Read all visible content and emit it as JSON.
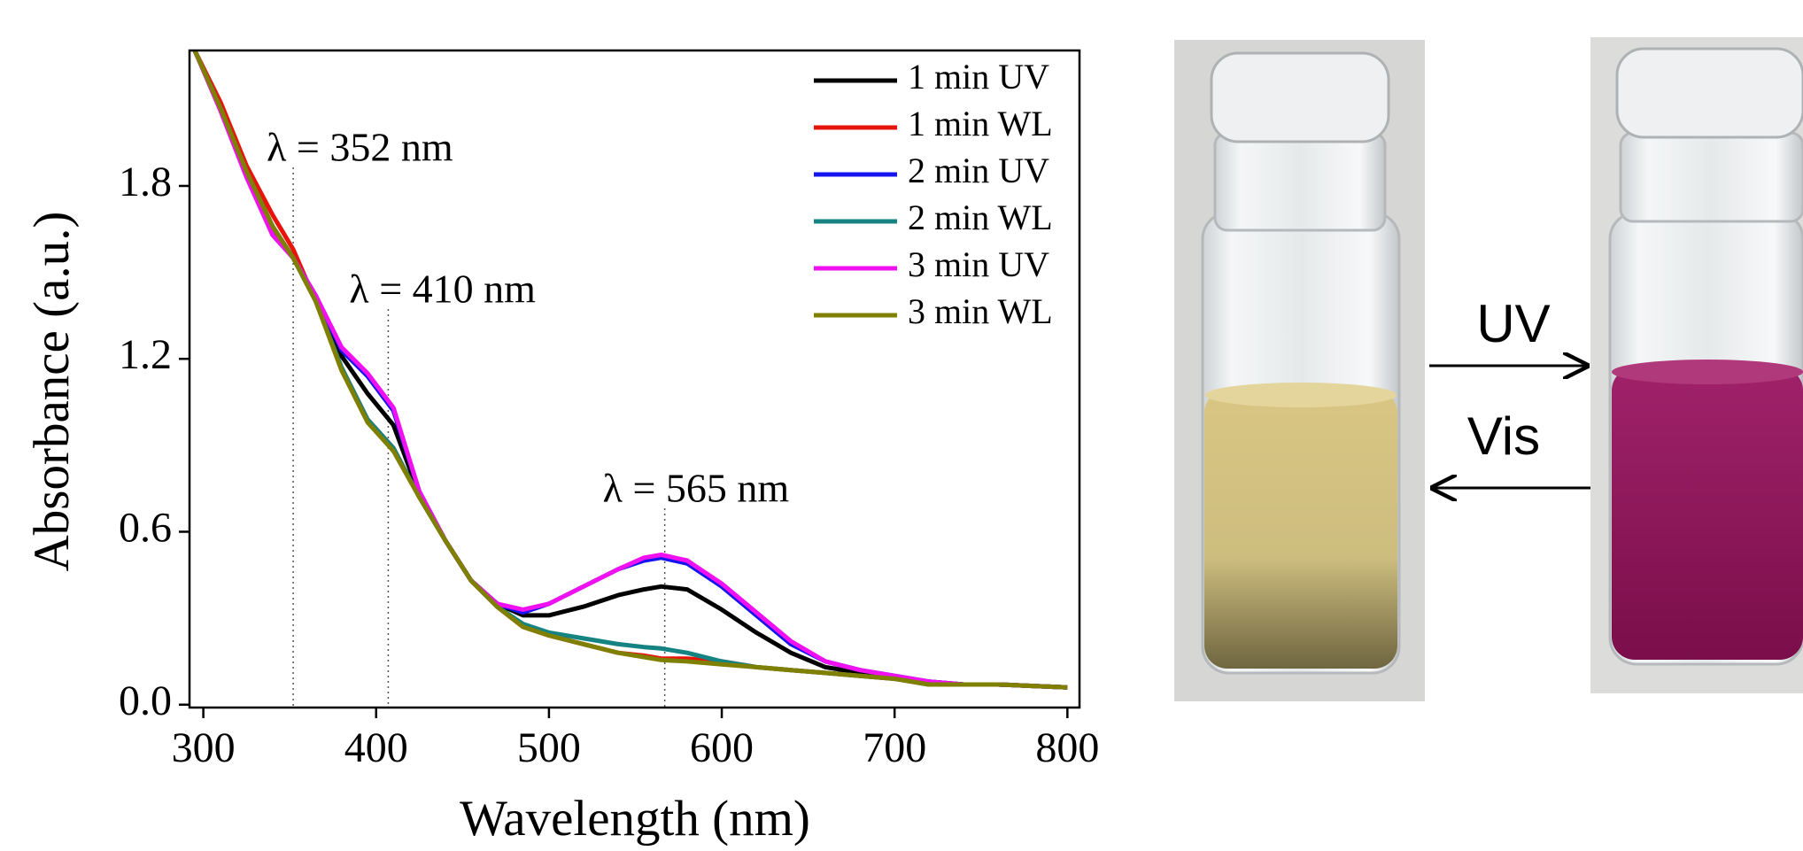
{
  "chart_data": {
    "type": "line",
    "x_label": "Wavelength (nm)",
    "y_label": "Absorbance (a.u.)",
    "xlim": [
      292,
      807
    ],
    "ylim": [
      -0.01,
      2.27
    ],
    "xticks": [
      300,
      400,
      500,
      600,
      700,
      800
    ],
    "yticks": [
      {
        "value": 0,
        "label": "0.0"
      },
      0.6,
      1.2,
      1.8
    ],
    "legend": "upper right",
    "x": [
      295,
      310,
      325,
      340,
      352,
      365,
      380,
      395,
      410,
      425,
      440,
      455,
      470,
      485,
      500,
      520,
      540,
      555,
      565,
      580,
      600,
      620,
      640,
      660,
      680,
      700,
      720,
      740,
      760,
      780,
      800
    ],
    "series": [
      {
        "name": "1 min UV",
        "color": "#000000",
        "values": [
          2.27,
          2.07,
          1.85,
          1.66,
          1.55,
          1.41,
          1.21,
          1.08,
          0.97,
          0.73,
          0.57,
          0.43,
          0.35,
          0.31,
          0.31,
          0.34,
          0.38,
          0.4,
          0.41,
          0.4,
          0.33,
          0.25,
          0.18,
          0.13,
          0.11,
          0.09,
          0.08,
          0.07,
          0.07,
          0.065,
          0.06
        ]
      },
      {
        "name": "1 min WL",
        "color": "#e8140c",
        "values": [
          2.27,
          2.09,
          1.87,
          1.7,
          1.58,
          1.4,
          1.17,
          0.99,
          0.89,
          0.72,
          0.57,
          0.43,
          0.34,
          0.27,
          0.24,
          0.21,
          0.18,
          0.17,
          0.16,
          0.16,
          0.15,
          0.13,
          0.12,
          0.11,
          0.1,
          0.09,
          0.07,
          0.07,
          0.07,
          0.065,
          0.06
        ]
      },
      {
        "name": "2 min UV",
        "color": "#1414f0",
        "values": [
          2.27,
          2.07,
          1.84,
          1.64,
          1.55,
          1.42,
          1.23,
          1.14,
          1.02,
          0.74,
          0.57,
          0.43,
          0.35,
          0.32,
          0.35,
          0.41,
          0.47,
          0.5,
          0.51,
          0.49,
          0.41,
          0.31,
          0.21,
          0.15,
          0.12,
          0.1,
          0.08,
          0.07,
          0.07,
          0.065,
          0.06
        ]
      },
      {
        "name": "2 min WL",
        "color": "#168383",
        "values": [
          2.27,
          2.07,
          1.85,
          1.66,
          1.55,
          1.4,
          1.17,
          0.99,
          0.89,
          0.72,
          0.57,
          0.43,
          0.34,
          0.28,
          0.25,
          0.23,
          0.21,
          0.2,
          0.195,
          0.18,
          0.15,
          0.13,
          0.12,
          0.11,
          0.1,
          0.09,
          0.07,
          0.07,
          0.07,
          0.065,
          0.06
        ]
      },
      {
        "name": "3 min UV",
        "color": "#f010f0",
        "values": [
          2.27,
          2.06,
          1.83,
          1.63,
          1.55,
          1.42,
          1.24,
          1.15,
          1.03,
          0.74,
          0.57,
          0.43,
          0.35,
          0.33,
          0.35,
          0.41,
          0.47,
          0.51,
          0.52,
          0.5,
          0.42,
          0.32,
          0.22,
          0.15,
          0.12,
          0.1,
          0.08,
          0.07,
          0.07,
          0.065,
          0.06
        ]
      },
      {
        "name": "3 min WL",
        "color": "#7f7f00",
        "values": [
          2.27,
          2.07,
          1.85,
          1.66,
          1.55,
          1.4,
          1.16,
          0.98,
          0.88,
          0.72,
          0.57,
          0.43,
          0.34,
          0.27,
          0.24,
          0.21,
          0.18,
          0.165,
          0.155,
          0.15,
          0.14,
          0.13,
          0.12,
          0.11,
          0.1,
          0.09,
          0.07,
          0.07,
          0.07,
          0.065,
          0.06
        ]
      }
    ],
    "annotations": [
      {
        "text": "λ = 352 nm",
        "x": 352
      },
      {
        "text": "λ = 410 nm",
        "x": 407
      },
      {
        "text": "λ = 565 nm",
        "x": 567
      }
    ]
  },
  "photo": {
    "arrow_labels": [
      "UV",
      "Vis"
    ]
  }
}
